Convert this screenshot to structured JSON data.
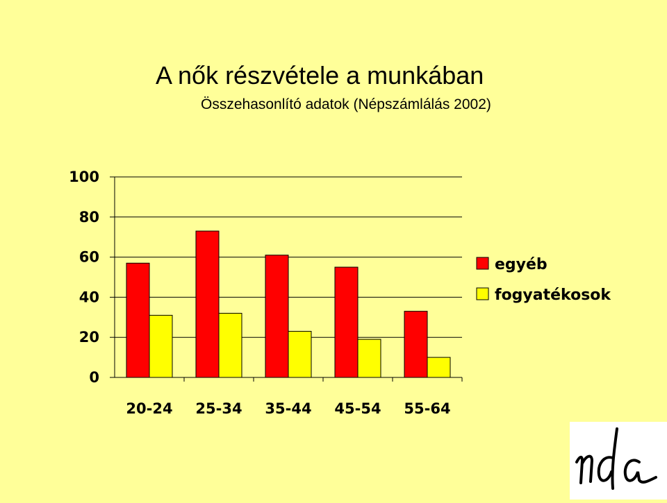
{
  "title": "A nők részvétele a munkában",
  "subtitle": "Összehasonlító adatok (Népszámlálás 2002)",
  "logo": "nda",
  "colors": {
    "background": "#FFFF99",
    "series_1": "#FF0000",
    "series_2": "#FFFF00"
  },
  "chart_data": {
    "type": "bar",
    "title": "",
    "xlabel": "",
    "ylabel": "",
    "categories": [
      "20-24",
      "25-34",
      "35-44",
      "45-54",
      "55-64"
    ],
    "series": [
      {
        "name": "egyéb",
        "values": [
          57,
          73,
          61,
          55,
          33
        ]
      },
      {
        "name": "fogyatékosok",
        "values": [
          31,
          32,
          23,
          19,
          10
        ]
      }
    ],
    "ylim": [
      0,
      100
    ],
    "yticks": [
      0,
      20,
      40,
      60,
      80,
      100
    ],
    "grid": true,
    "legend": "right"
  }
}
